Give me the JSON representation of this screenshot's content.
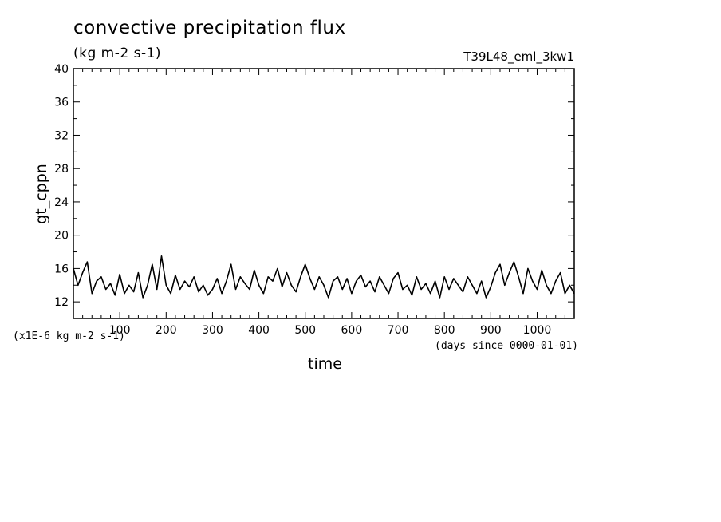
{
  "chart_data": {
    "type": "line",
    "title": "convective precipitation flux",
    "subtitle": "(kg m-2 s-1)",
    "run_label": "T39L48_eml_3kw1",
    "ylabel": "gt_cppn",
    "xlabel": "time",
    "x_units": "(days since 0000-01-01)",
    "y_scale_note": "(x1E-6 kg m-2 s-1)",
    "xlim": [
      0,
      1080
    ],
    "ylim": [
      10,
      40
    ],
    "xticks": [
      100,
      200,
      300,
      400,
      500,
      600,
      700,
      800,
      900,
      1000
    ],
    "yticks": [
      12,
      16,
      20,
      24,
      28,
      32,
      36,
      40
    ],
    "grid": false,
    "series": [
      {
        "x": [
          0,
          10,
          20,
          30,
          40,
          50,
          60,
          70,
          80,
          90,
          100,
          110,
          120,
          130,
          140,
          150,
          160,
          170,
          180,
          190,
          200,
          210,
          220,
          230,
          240,
          250,
          260,
          270,
          280,
          290,
          300,
          310,
          320,
          330,
          340,
          350,
          360,
          370,
          380,
          390,
          400,
          410,
          420,
          430,
          440,
          450,
          460,
          470,
          480,
          490,
          500,
          510,
          520,
          530,
          540,
          550,
          560,
          570,
          580,
          590,
          600,
          610,
          620,
          630,
          640,
          650,
          660,
          670,
          680,
          690,
          700,
          710,
          720,
          730,
          740,
          750,
          760,
          770,
          780,
          790,
          800,
          810,
          820,
          830,
          840,
          850,
          860,
          870,
          880,
          890,
          900,
          910,
          920,
          930,
          940,
          950,
          960,
          970,
          980,
          990,
          1000,
          1010,
          1020,
          1030,
          1040,
          1050,
          1060,
          1070,
          1080
        ],
        "values": [
          16.0,
          14.0,
          15.5,
          16.8,
          13.0,
          14.5,
          15.0,
          13.5,
          14.2,
          12.8,
          15.3,
          13.0,
          14.0,
          13.2,
          15.5,
          12.5,
          14.0,
          16.5,
          13.5,
          17.5,
          14.0,
          13.0,
          15.2,
          13.5,
          14.5,
          13.8,
          15.0,
          13.2,
          14.0,
          12.8,
          13.5,
          14.8,
          13.0,
          14.5,
          16.5,
          13.5,
          15.0,
          14.2,
          13.5,
          15.8,
          14.0,
          13.0,
          15.0,
          14.5,
          16.0,
          13.8,
          15.5,
          14.0,
          13.2,
          15.0,
          16.5,
          14.8,
          13.5,
          15.0,
          14.0,
          12.5,
          14.5,
          15.0,
          13.5,
          14.8,
          13.0,
          14.5,
          15.2,
          13.8,
          14.5,
          13.2,
          15.0,
          14.0,
          13.0,
          14.8,
          15.5,
          13.5,
          14.0,
          12.8,
          15.0,
          13.5,
          14.2,
          13.0,
          14.5,
          12.5,
          15.0,
          13.5,
          14.8,
          14.0,
          13.2,
          15.0,
          14.0,
          13.0,
          14.5,
          12.5,
          13.8,
          15.5,
          16.5,
          14.0,
          15.5,
          16.8,
          15.0,
          13.0,
          16.0,
          14.5,
          13.5,
          15.8,
          14.0,
          13.0,
          14.5,
          15.5,
          13.0,
          14.0,
          13.0
        ]
      }
    ]
  }
}
